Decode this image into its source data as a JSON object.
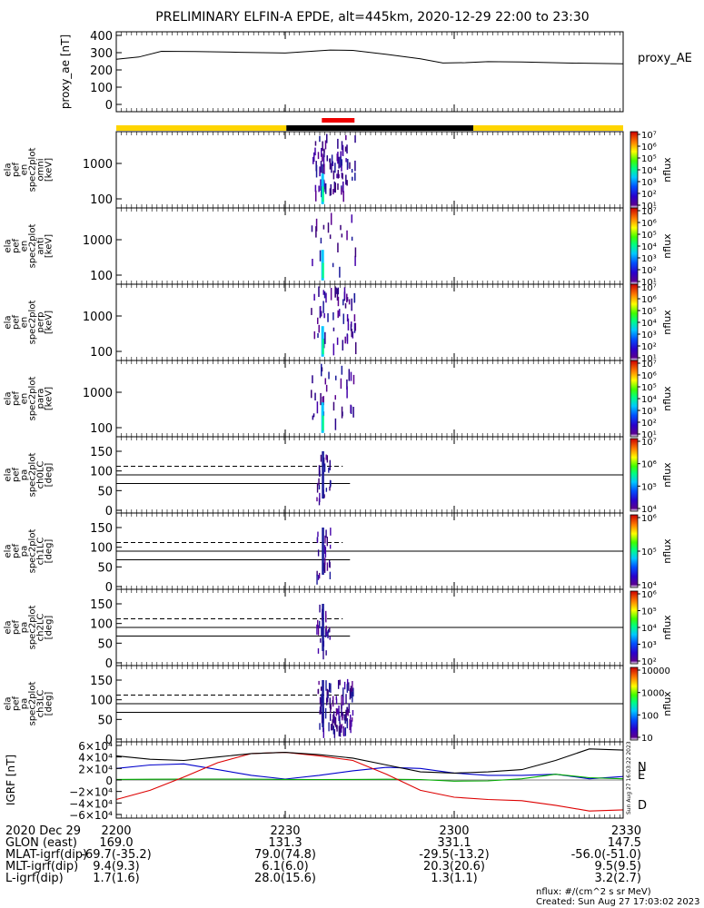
{
  "title": "PRELIMINARY ELFIN-A EPDE, alt=445km, 2020-12-29 22:00 to 23:30",
  "chart_data": {
    "type": "line",
    "time_ticks": [
      "2200",
      "2230",
      "2300",
      "2330"
    ],
    "time_range_minutes": [
      0,
      90
    ],
    "proxy_ae": {
      "ylabel": "proxy_ae [nT]",
      "legend": "proxy_AE",
      "yticks": [
        "400",
        "300",
        "200",
        "100",
        "0"
      ],
      "ylim": [
        0,
        400
      ],
      "x": [
        0,
        4,
        8,
        14,
        22,
        30,
        38,
        42,
        48,
        54,
        58,
        62,
        66,
        72,
        80,
        90
      ],
      "y": [
        262,
        275,
        308,
        307,
        302,
        298,
        315,
        313,
        290,
        265,
        240,
        242,
        248,
        246,
        240,
        235
      ]
    },
    "status_bar": {
      "colors": [
        "#ffd500",
        "#000000",
        "#ffd500"
      ],
      "segments_minutes": [
        [
          0,
          30.2
        ],
        [
          30.2,
          63.4
        ],
        [
          63.4,
          90
        ]
      ],
      "marker_color": "#ee0000",
      "marker_minutes": [
        36.5,
        42.3
      ]
    },
    "spectrograms": [
      {
        "ylabel": [
          "ela",
          "pef",
          "en",
          "spec2plot",
          "omni",
          "[keV]"
        ],
        "yticks": [
          "1000",
          "100"
        ],
        "cbar_ticks": [
          "10⁷",
          "10⁶",
          "10⁵",
          "10⁴",
          "10³",
          "10²",
          "10¹"
        ],
        "cbar_label": "nflux"
      },
      {
        "ylabel": [
          "ela",
          "pef",
          "en",
          "spec2plot",
          "anti",
          "[keV]"
        ],
        "yticks": [
          "1000",
          "100"
        ],
        "cbar_ticks": [
          "10⁷",
          "10⁶",
          "10⁵",
          "10⁴",
          "10³",
          "10²",
          "10¹"
        ],
        "cbar_label": "nflux"
      },
      {
        "ylabel": [
          "ela",
          "pef",
          "en",
          "spec2plot",
          "perp",
          "[keV]"
        ],
        "yticks": [
          "1000",
          "100"
        ],
        "cbar_ticks": [
          "10⁷",
          "10⁶",
          "10⁵",
          "10⁴",
          "10³",
          "10²",
          "10¹"
        ],
        "cbar_label": "nflux"
      },
      {
        "ylabel": [
          "ela",
          "pef",
          "en",
          "spec2plot",
          "para",
          "[keV]"
        ],
        "yticks": [
          "1000",
          "100"
        ],
        "cbar_ticks": [
          "10⁷",
          "10⁶",
          "10⁵",
          "10⁴",
          "10³",
          "10²",
          "10¹"
        ],
        "cbar_label": "nflux"
      }
    ],
    "pitch_angle_panels": [
      {
        "ylabel": [
          "ela",
          "pef",
          "pa",
          "spec2plot",
          "ch0LC",
          "[deg]"
        ],
        "yticks": [
          "150",
          "100",
          "50",
          "0"
        ],
        "cbar_ticks": [
          "10⁷",
          "10⁶",
          "10⁵",
          "10⁴"
        ],
        "cbar_label": "nflux"
      },
      {
        "ylabel": [
          "ela",
          "pef",
          "pa",
          "spec2plot",
          "ch1LC",
          "[deg]"
        ],
        "yticks": [
          "150",
          "100",
          "50",
          "0"
        ],
        "cbar_ticks": [
          "10⁶",
          "10⁵",
          "10⁴"
        ],
        "cbar_label": "nflux"
      },
      {
        "ylabel": [
          "ela",
          "pef",
          "pa",
          "spec2plot",
          "ch2LC",
          "[deg]"
        ],
        "yticks": [
          "150",
          "100",
          "50",
          "0"
        ],
        "cbar_ticks": [
          "10⁶",
          "10⁵",
          "10⁴",
          "10³",
          "10²"
        ],
        "cbar_label": "nflux"
      },
      {
        "ylabel": [
          "ela",
          "pef",
          "pa",
          "spec2plot",
          "ch3LC",
          "[deg]"
        ],
        "yticks": [
          "150",
          "100",
          "50",
          "0"
        ],
        "cbar_ticks": [
          "10000",
          "1000",
          "100",
          "10"
        ],
        "cbar_label": "nflux"
      }
    ],
    "igrf": {
      "ylabel": "IGRF [nT]",
      "yticks": [
        "6×10⁴",
        "4×10⁴",
        "2×10⁴",
        "0",
        "−2×10⁴",
        "−4×10⁴",
        "−6×10⁴"
      ],
      "ylim": [
        -60000,
        60000
      ],
      "x": [
        0,
        6,
        12,
        18,
        24,
        30,
        36,
        42,
        48,
        54,
        60,
        66,
        72,
        78,
        84,
        90
      ],
      "series": [
        {
          "name": "N",
          "color": "#0000cc",
          "y": [
            20000,
            26000,
            28000,
            18000,
            8000,
            1500,
            8000,
            16000,
            22000,
            20000,
            12000,
            8000,
            8000,
            10000,
            2000,
            6000
          ]
        },
        {
          "name": "E",
          "color": "#00aa00",
          "y": [
            1000,
            1200,
            1500,
            1600,
            1500,
            1000,
            800,
            1000,
            1200,
            800,
            -2000,
            -1500,
            2000,
            10000,
            4000,
            2000
          ]
        },
        {
          "name": "D",
          "color": "#dd0000",
          "y": [
            -34000,
            -18000,
            5000,
            30000,
            46000,
            48000,
            42000,
            34000,
            10000,
            -18000,
            -30000,
            -34000,
            -36000,
            -44000,
            -54000,
            -52000
          ]
        },
        {
          "name": "",
          "color": "#000000",
          "y": [
            42000,
            36000,
            34000,
            40000,
            46000,
            48000,
            44000,
            38000,
            26000,
            14000,
            12000,
            14000,
            18000,
            34000,
            54000,
            52000
          ]
        }
      ],
      "side_text": "Sun Aug 27 16:03:22 2023"
    },
    "orbit_table": {
      "rows": [
        {
          "label": "2020 Dec 29",
          "values": [
            "2200",
            "2230",
            "2300",
            "2330"
          ]
        },
        {
          "label": "GLON (east)",
          "values": [
            "169.0",
            "131.3",
            "331.1",
            "147.5"
          ]
        },
        {
          "label": "MLAT-igrf(dip)",
          "values": [
            "-69.7(-35.2)",
            "79.0(74.8)",
            "-29.5(-13.2)",
            "-56.0(-51.0)"
          ]
        },
        {
          "label": "MLT-igrf(dip)",
          "values": [
            "9.4(9.3)",
            "6.1(6.0)",
            "20.3(20.6)",
            "9.5(9.5)"
          ]
        },
        {
          "label": "L-igrf(dip)",
          "values": [
            "1.7(1.6)",
            "28.0(15.6)",
            "1.3(1.1)",
            "3.2(2.7)"
          ]
        }
      ]
    },
    "footer_units": "nflux: #/(cm^2 s sr MeV)",
    "footer_created": "Created: Sun Aug 27 17:03:02 2023"
  }
}
